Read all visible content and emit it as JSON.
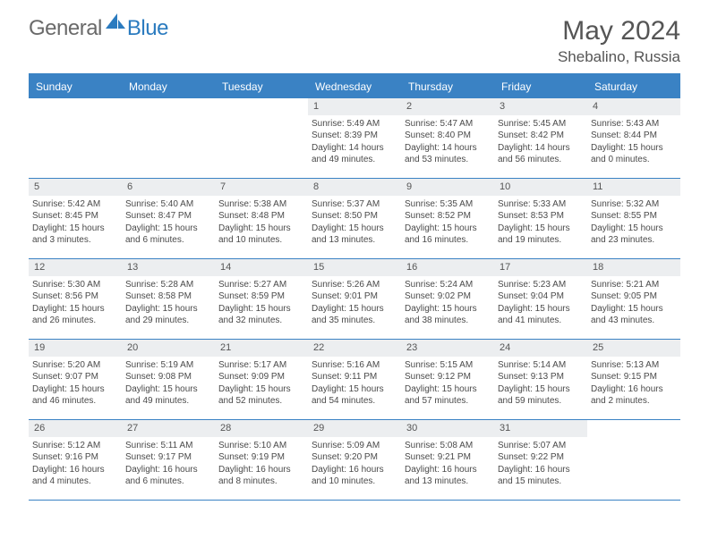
{
  "brand": {
    "part1": "General",
    "part2": "Blue"
  },
  "title": {
    "month": "May 2024",
    "location": "Shebalino, Russia"
  },
  "colors": {
    "accent": "#3a82c4",
    "header_text": "#ffffff",
    "daybar_bg": "#eceef0",
    "text": "#4a4a4a",
    "logo_gray": "#6a6a6a",
    "logo_blue": "#2b7bbf"
  },
  "weekdays": [
    "Sunday",
    "Monday",
    "Tuesday",
    "Wednesday",
    "Thursday",
    "Friday",
    "Saturday"
  ],
  "grid": {
    "leading_blanks": 3,
    "days": [
      {
        "n": 1,
        "sr": "5:49 AM",
        "ss": "8:39 PM",
        "dl": "14 hours and 49 minutes."
      },
      {
        "n": 2,
        "sr": "5:47 AM",
        "ss": "8:40 PM",
        "dl": "14 hours and 53 minutes."
      },
      {
        "n": 3,
        "sr": "5:45 AM",
        "ss": "8:42 PM",
        "dl": "14 hours and 56 minutes."
      },
      {
        "n": 4,
        "sr": "5:43 AM",
        "ss": "8:44 PM",
        "dl": "15 hours and 0 minutes."
      },
      {
        "n": 5,
        "sr": "5:42 AM",
        "ss": "8:45 PM",
        "dl": "15 hours and 3 minutes."
      },
      {
        "n": 6,
        "sr": "5:40 AM",
        "ss": "8:47 PM",
        "dl": "15 hours and 6 minutes."
      },
      {
        "n": 7,
        "sr": "5:38 AM",
        "ss": "8:48 PM",
        "dl": "15 hours and 10 minutes."
      },
      {
        "n": 8,
        "sr": "5:37 AM",
        "ss": "8:50 PM",
        "dl": "15 hours and 13 minutes."
      },
      {
        "n": 9,
        "sr": "5:35 AM",
        "ss": "8:52 PM",
        "dl": "15 hours and 16 minutes."
      },
      {
        "n": 10,
        "sr": "5:33 AM",
        "ss": "8:53 PM",
        "dl": "15 hours and 19 minutes."
      },
      {
        "n": 11,
        "sr": "5:32 AM",
        "ss": "8:55 PM",
        "dl": "15 hours and 23 minutes."
      },
      {
        "n": 12,
        "sr": "5:30 AM",
        "ss": "8:56 PM",
        "dl": "15 hours and 26 minutes."
      },
      {
        "n": 13,
        "sr": "5:28 AM",
        "ss": "8:58 PM",
        "dl": "15 hours and 29 minutes."
      },
      {
        "n": 14,
        "sr": "5:27 AM",
        "ss": "8:59 PM",
        "dl": "15 hours and 32 minutes."
      },
      {
        "n": 15,
        "sr": "5:26 AM",
        "ss": "9:01 PM",
        "dl": "15 hours and 35 minutes."
      },
      {
        "n": 16,
        "sr": "5:24 AM",
        "ss": "9:02 PM",
        "dl": "15 hours and 38 minutes."
      },
      {
        "n": 17,
        "sr": "5:23 AM",
        "ss": "9:04 PM",
        "dl": "15 hours and 41 minutes."
      },
      {
        "n": 18,
        "sr": "5:21 AM",
        "ss": "9:05 PM",
        "dl": "15 hours and 43 minutes."
      },
      {
        "n": 19,
        "sr": "5:20 AM",
        "ss": "9:07 PM",
        "dl": "15 hours and 46 minutes."
      },
      {
        "n": 20,
        "sr": "5:19 AM",
        "ss": "9:08 PM",
        "dl": "15 hours and 49 minutes."
      },
      {
        "n": 21,
        "sr": "5:17 AM",
        "ss": "9:09 PM",
        "dl": "15 hours and 52 minutes."
      },
      {
        "n": 22,
        "sr": "5:16 AM",
        "ss": "9:11 PM",
        "dl": "15 hours and 54 minutes."
      },
      {
        "n": 23,
        "sr": "5:15 AM",
        "ss": "9:12 PM",
        "dl": "15 hours and 57 minutes."
      },
      {
        "n": 24,
        "sr": "5:14 AM",
        "ss": "9:13 PM",
        "dl": "15 hours and 59 minutes."
      },
      {
        "n": 25,
        "sr": "5:13 AM",
        "ss": "9:15 PM",
        "dl": "16 hours and 2 minutes."
      },
      {
        "n": 26,
        "sr": "5:12 AM",
        "ss": "9:16 PM",
        "dl": "16 hours and 4 minutes."
      },
      {
        "n": 27,
        "sr": "5:11 AM",
        "ss": "9:17 PM",
        "dl": "16 hours and 6 minutes."
      },
      {
        "n": 28,
        "sr": "5:10 AM",
        "ss": "9:19 PM",
        "dl": "16 hours and 8 minutes."
      },
      {
        "n": 29,
        "sr": "5:09 AM",
        "ss": "9:20 PM",
        "dl": "16 hours and 10 minutes."
      },
      {
        "n": 30,
        "sr": "5:08 AM",
        "ss": "9:21 PM",
        "dl": "16 hours and 13 minutes."
      },
      {
        "n": 31,
        "sr": "5:07 AM",
        "ss": "9:22 PM",
        "dl": "16 hours and 15 minutes."
      }
    ]
  },
  "labels": {
    "sunrise": "Sunrise:",
    "sunset": "Sunset:",
    "daylight": "Daylight:"
  }
}
